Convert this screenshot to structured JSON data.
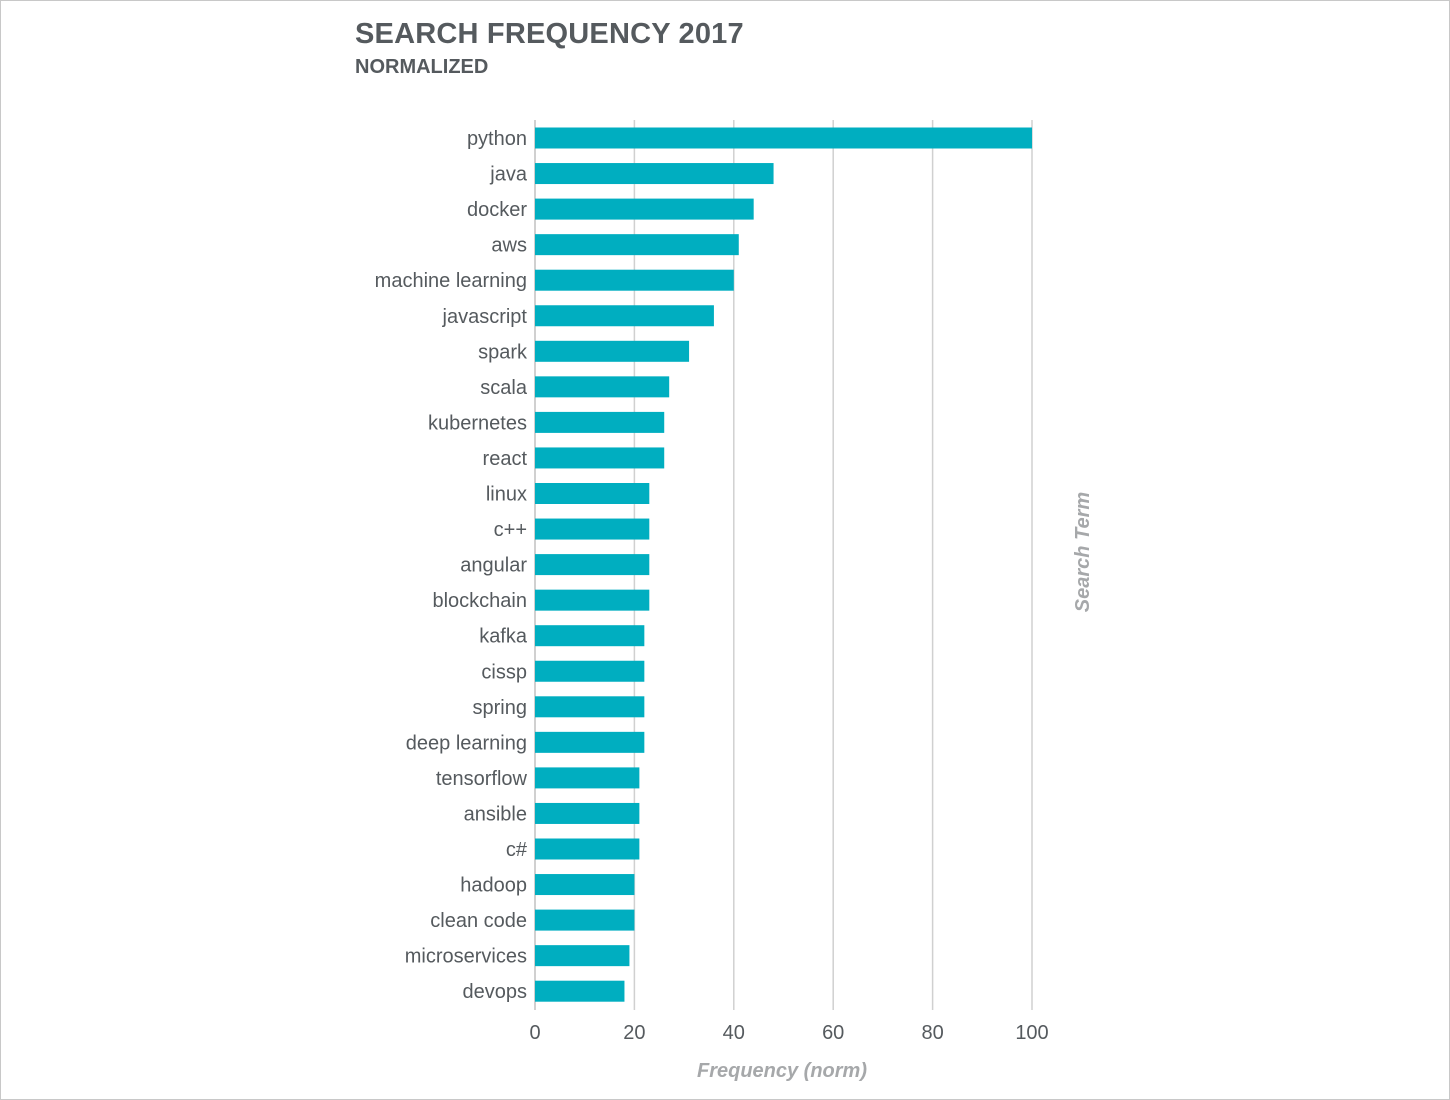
{
  "chart_data": {
    "type": "bar",
    "orientation": "horizontal",
    "title": "SEARCH FREQUENCY 2017",
    "subtitle": "NORMALIZED",
    "xlabel": "Frequency (norm)",
    "ylabel": "Search Term",
    "xlim": [
      0,
      100
    ],
    "x_ticks": [
      0,
      20,
      40,
      60,
      80,
      100
    ],
    "grid": true,
    "bar_color": "#00AEC0",
    "gridline_color": "#d0d0d0",
    "categories": [
      "python",
      "java",
      "docker",
      "aws",
      "machine learning",
      "javascript",
      "spark",
      "scala",
      "kubernetes",
      "react",
      "linux",
      "c++",
      "angular",
      "blockchain",
      "kafka",
      "cissp",
      "spring",
      "deep learning",
      "tensorflow",
      "ansible",
      "c#",
      "hadoop",
      "clean code",
      "microservices",
      "devops"
    ],
    "values": [
      100,
      48,
      44,
      41,
      40,
      36,
      31,
      27,
      26,
      26,
      23,
      23,
      23,
      23,
      22,
      22,
      22,
      22,
      21,
      21,
      21,
      20,
      20,
      19,
      18
    ]
  }
}
